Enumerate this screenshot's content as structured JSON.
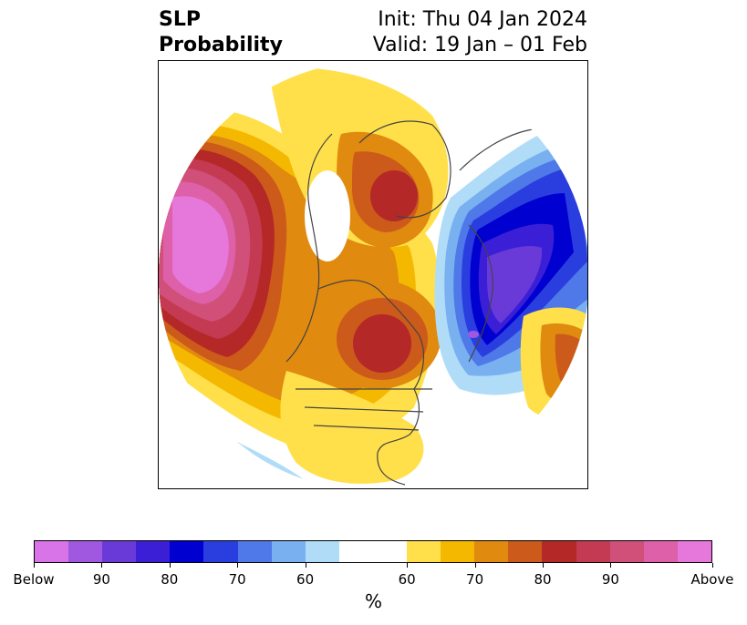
{
  "title": {
    "variable": "SLP",
    "metric": "Probability",
    "init": "Init: Thu 04 Jan 2024",
    "valid": "Valid: 19 Jan – 01 Feb"
  },
  "colorbar": {
    "unit": "%",
    "below_colors": [
      "#d973e8",
      "#a058e0",
      "#6a3ad8",
      "#3a1fd6",
      "#0000d0",
      "#2a3ee0",
      "#4f78e8",
      "#78b0f0",
      "#b0dcf8"
    ],
    "neutral_color": "#ffffff",
    "above_colors": [
      "#ffe04a",
      "#f5b800",
      "#e08a10",
      "#cc5a1a",
      "#b42828",
      "#c43a52",
      "#d0507a",
      "#dd60a8",
      "#e678dc"
    ],
    "tick_labels": [
      "Below",
      "90",
      "80",
      "70",
      "60",
      "60",
      "70",
      "80",
      "90",
      "Above"
    ]
  },
  "map": {
    "projection": "north-polar-stereographic",
    "land_outline_color": "#444444",
    "features": [
      "north-pacific-positive-anomaly",
      "north-atlantic-negative-anomaly",
      "hudson-bay-positive-anomaly",
      "greenland-positive-anomaly"
    ]
  }
}
